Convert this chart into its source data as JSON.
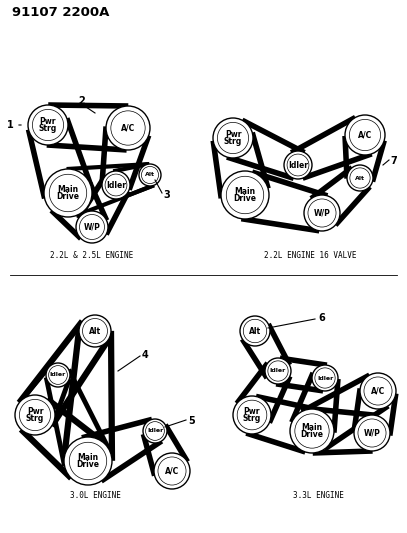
{
  "title": "91107 2200A",
  "bg": "#ffffff",
  "lc": "#000000",
  "diagrams": {
    "d1": {
      "caption": "2.2L & 2.5L ENGINE",
      "pulleys": {
        "PwrStrg": [
          52,
          390,
          19
        ],
        "AC": [
          130,
          393,
          21
        ],
        "MainDrive": [
          72,
          332,
          23
        ],
        "Idler": [
          118,
          343,
          13
        ],
        "Alt": [
          152,
          355,
          11
        ],
        "WP": [
          98,
          302,
          15
        ]
      },
      "labels": {
        "1": [
          22,
          378
        ],
        "2": [
          82,
          418
        ],
        "3": [
          163,
          330
        ]
      }
    },
    "d2": {
      "caption": "2.2L ENGINE 16 VALVE",
      "pulleys": {
        "PwrStrg": [
          235,
          388,
          19
        ],
        "AC": [
          360,
          393,
          20
        ],
        "Idler": [
          295,
          362,
          13
        ],
        "Alt": [
          357,
          352,
          13
        ],
        "MainDrive": [
          247,
          332,
          23
        ],
        "WP": [
          320,
          316,
          17
        ]
      },
      "labels": {
        "7": [
          385,
          368
        ]
      }
    },
    "d3": {
      "caption": "3.0L ENGINE",
      "pulleys": {
        "Alt": [
          100,
          192,
          15
        ],
        "Idler": [
          62,
          155,
          11
        ],
        "PwrStrg": [
          38,
          120,
          19
        ],
        "MainDrive": [
          88,
          82,
          23
        ],
        "AC": [
          170,
          72,
          17
        ],
        "Idler2": [
          148,
          110,
          11
        ]
      },
      "labels": {
        "4": [
          140,
          172
        ],
        "5": [
          183,
          118
        ]
      }
    },
    "d4": {
      "caption": "3.3L ENGINE",
      "pulleys": {
        "Alt": [
          255,
          192,
          14
        ],
        "Idler": [
          275,
          155,
          12
        ],
        "Idler2": [
          320,
          148,
          12
        ],
        "PwrStrg": [
          248,
          118,
          18
        ],
        "MainDrive": [
          308,
          100,
          21
        ],
        "AC": [
          373,
          140,
          17
        ],
        "WP": [
          365,
          100,
          17
        ]
      },
      "labels": {
        "6": [
          308,
          205
        ]
      }
    }
  }
}
